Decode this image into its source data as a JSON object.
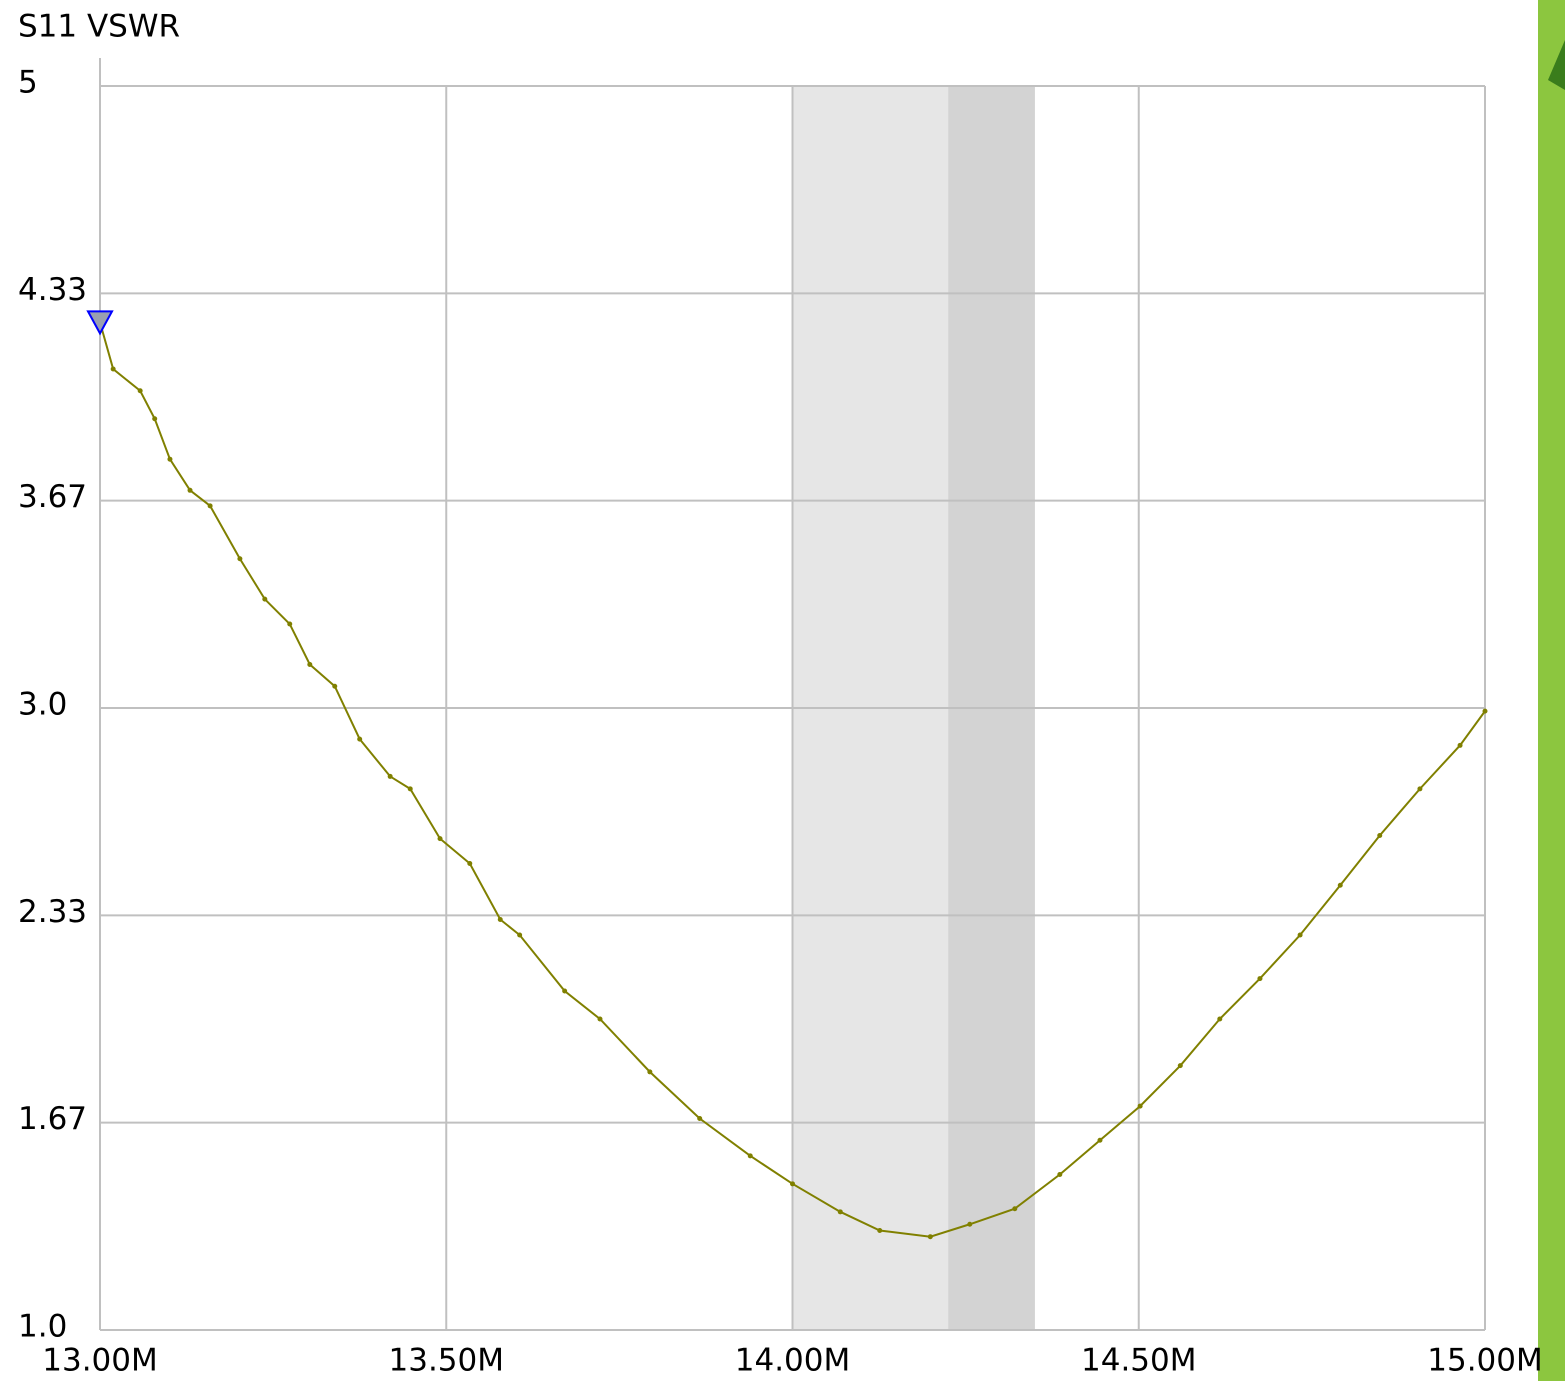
{
  "chart_data": {
    "type": "line",
    "title": "S11 VSWR",
    "x": [
      13.0,
      13.019,
      13.058,
      13.079,
      13.101,
      13.13,
      13.159,
      13.202,
      13.238,
      13.274,
      13.303,
      13.339,
      13.375,
      13.419,
      13.448,
      13.491,
      13.534,
      13.578,
      13.606,
      13.671,
      13.722,
      13.794,
      13.866,
      13.939,
      14.0,
      14.069,
      14.126,
      14.199,
      14.256,
      14.321,
      14.386,
      14.444,
      14.502,
      14.56,
      14.617,
      14.675,
      14.733,
      14.791,
      14.848,
      14.906,
      14.964,
      15.0
    ],
    "series": [
      {
        "name": "S11 VSWR",
        "color": "#808000",
        "values": [
          4.24,
          4.09,
          4.02,
          3.93,
          3.8,
          3.7,
          3.65,
          3.48,
          3.35,
          3.27,
          3.14,
          3.07,
          2.9,
          2.78,
          2.74,
          2.58,
          2.5,
          2.32,
          2.27,
          2.09,
          2.0,
          1.83,
          1.68,
          1.56,
          1.47,
          1.38,
          1.32,
          1.3,
          1.34,
          1.39,
          1.5,
          1.61,
          1.72,
          1.85,
          2.0,
          2.13,
          2.27,
          2.43,
          2.59,
          2.74,
          2.88,
          2.99
        ]
      }
    ],
    "marker": {
      "x": 13.0,
      "value": 4.24,
      "color": "#0000ff"
    },
    "bands": [
      {
        "range": [
          14.0,
          14.35
        ],
        "color": "#e6e6e6"
      },
      {
        "range": [
          14.225,
          14.35
        ],
        "color": "#d3d3d3"
      }
    ],
    "xlim": [
      13.0,
      15.0
    ],
    "xticks": [
      {
        "value": 13.0,
        "label": "13.00M"
      },
      {
        "value": 13.5,
        "label": "13.50M"
      },
      {
        "value": 14.0,
        "label": "14.00M"
      },
      {
        "value": 14.5,
        "label": "14.50M"
      },
      {
        "value": 15.0,
        "label": "15.00M"
      }
    ],
    "ylim": [
      1.0,
      5
    ],
    "yticks": [
      {
        "value": 1.0,
        "label": "1.0"
      },
      {
        "value": 1.6667,
        "label": "1.67"
      },
      {
        "value": 2.3333,
        "label": "2.33"
      },
      {
        "value": 3.0,
        "label": "3.0"
      },
      {
        "value": 3.6667,
        "label": "3.67"
      },
      {
        "value": 4.3333,
        "label": "4.33"
      },
      5
    ],
    "grid": true
  }
}
